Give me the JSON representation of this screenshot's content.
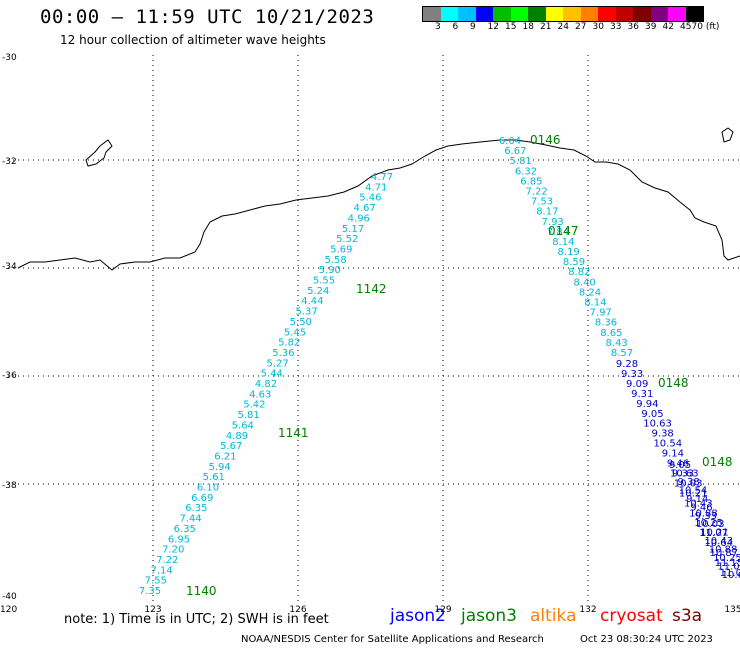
{
  "header": {
    "title": "00:00 – 11:59 UTC 10/21/2023",
    "subtitle": "12 hour collection of altimeter wave heights"
  },
  "legend": {
    "colors": [
      "#808080",
      "#00ffff",
      "#00c0ff",
      "#0000ff",
      "#00c000",
      "#00ff00",
      "#008000",
      "#ffff00",
      "#ffc000",
      "#ff8000",
      "#ff0000",
      "#c00000",
      "#800000",
      "#800080",
      "#ff00ff",
      "#000000"
    ],
    "labels": [
      "3",
      "6",
      "9",
      "12",
      "15",
      "18",
      "21",
      "24",
      "27",
      "30",
      "33",
      "36",
      "39",
      "42",
      "45",
      "70 (ft)"
    ]
  },
  "axes": {
    "x_ticks": [
      "123",
      "126",
      "129",
      "132",
      "135"
    ],
    "x_left_label": "120",
    "y_ticks": [
      "-30",
      "-32",
      "-34",
      "-36",
      "-38",
      "-40"
    ]
  },
  "pass_times": [
    {
      "label": "0146",
      "color": "#008000"
    },
    {
      "label": "0147",
      "color": "#008000"
    },
    {
      "label": "1142",
      "color": "#008000"
    },
    {
      "label": "0148",
      "color": "#008000"
    },
    {
      "label": "1141",
      "color": "#008000"
    },
    {
      "label": "0148",
      "color": "#008000"
    },
    {
      "label": "1140",
      "color": "#008000"
    }
  ],
  "track_jason3": {
    "color": "#00b8d8",
    "values": [
      "4.77",
      "4.71",
      "5.46",
      "4.67",
      "4.96",
      "5.17",
      "5.52",
      "5.69",
      "5.58",
      "5.90",
      "5.55",
      "5.24",
      "4.44",
      "5.37",
      "5.50",
      "5.45",
      "5.82",
      "5.36",
      "5.27",
      "5.44",
      "4.82",
      "4.63",
      "5.42",
      "5.81",
      "5.64",
      "4.89",
      "5.67",
      "6.21",
      "5.94",
      "5.61",
      "6.10",
      "6.69",
      "6.35",
      "7.44",
      "6.35",
      "6.95",
      "7.20",
      "7.22",
      "7.14",
      "7.55",
      "7.35"
    ]
  },
  "track_east": {
    "values_cyan": [
      "6.04",
      "6.67",
      "5.81",
      "6.32",
      "6.85",
      "7.22",
      "7.53",
      "8.17",
      "7.93",
      "7.84",
      "8.14",
      "8.19",
      "8.59",
      "8.82",
      "8.40",
      "8.24",
      "8.14",
      "7.97",
      "8.36",
      "8.65",
      "8.43",
      "8.57"
    ],
    "values_blue": [
      "9.28",
      "9.33",
      "9.09",
      "9.31",
      "9.94",
      "9.05",
      "10.63",
      "9.38",
      "10.54",
      "9.14",
      "9.46",
      "9.33",
      "10.03",
      "10.21",
      "10.43",
      "10.88",
      "10.25",
      "11.07",
      "10.64",
      "10.87",
      "11.15",
      "11.02"
    ],
    "color_cyan": "#00b8d8",
    "color_blue": "#0000cc"
  },
  "footer": {
    "note": "note: 1) Time is in UTC; 2) SWH is in feet",
    "satellites": [
      {
        "name": "jason2",
        "color": "#0000ff"
      },
      {
        "name": "jason3",
        "color": "#008000"
      },
      {
        "name": "altika",
        "color": "#ff8000"
      },
      {
        "name": "cryosat",
        "color": "#ff0000"
      },
      {
        "name": "s3a",
        "color": "#800000"
      }
    ],
    "credit": "NOAA/NESDIS Center for Satellite Applications and Research",
    "timestamp": "Oct 23 08:30:24 UTC 2023"
  }
}
